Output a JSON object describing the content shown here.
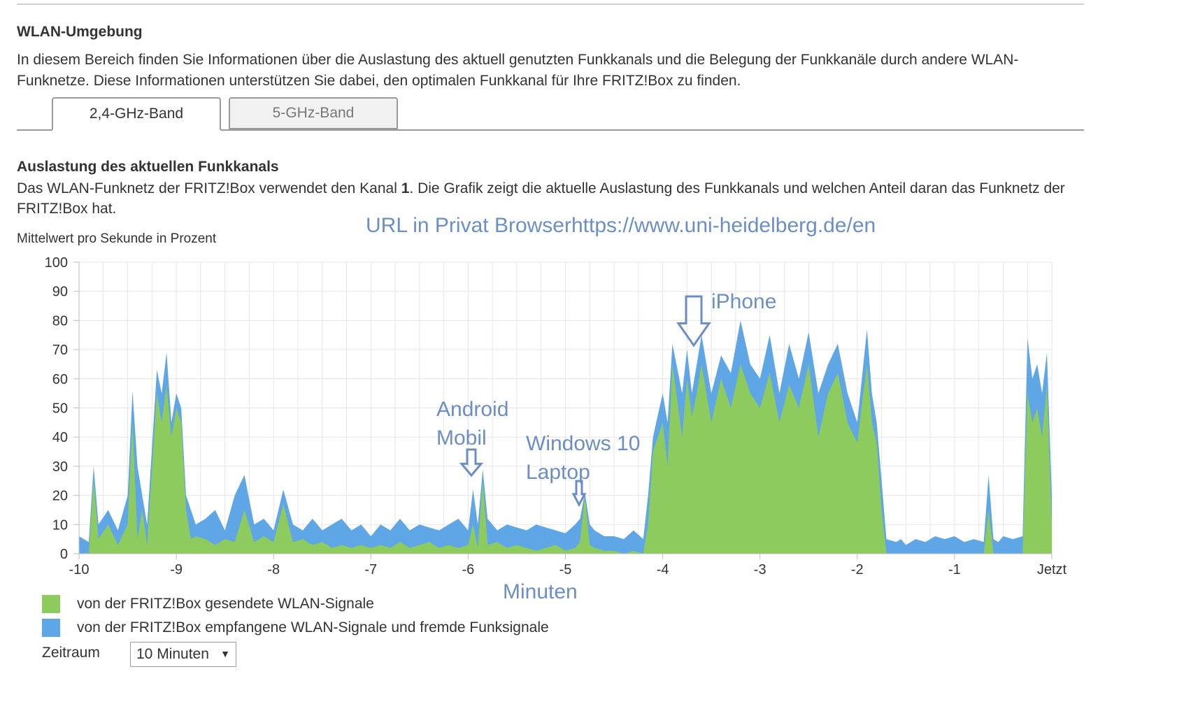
{
  "page": {
    "section_title": "WLAN-Umgebung",
    "intro": "In diesem Bereich finden Sie Informationen über die Auslastung des aktuell genutzten Funkkanals und die Belegung der Funkkanäle durch andere WLAN-Funknetze. Diese Informationen unterstützen Sie dabei, den optimalen Funkkanal für Ihre FRITZ!Box zu finden.",
    "tabs": [
      {
        "label": "2,4-GHz-Band",
        "active": true
      },
      {
        "label": "5-GHz-Band",
        "active": false
      }
    ],
    "subsection_title": "Auslastung des aktuellen Funkkanals",
    "desc_prefix": "Das WLAN-Funknetz der FRITZ!Box verwendet den Kanal ",
    "channel": "1",
    "desc_suffix": ". Die Grafik zeigt die aktuelle Auslastung des Funkkanals und welchen Anteil daran das Funknetz der FRITZ!Box hat.",
    "chart_ylabel": "Mittelwert pro Sekunde in Prozent",
    "legend": [
      {
        "label": "von der FRITZ!Box gesendete WLAN-Signale",
        "color": "#8ecb5f"
      },
      {
        "label": "von der FRITZ!Box empfangene WLAN-Signale und fremde Funksignale",
        "color": "#5ea6e6"
      }
    ],
    "zeitraum_label": "Zeitraum",
    "zeitraum_value": "10 Minuten",
    "annotations": {
      "url_note": "URL in Privat Browserhttps://www.uni-heidelberg.de/en",
      "android": [
        "Android",
        "Mobil"
      ],
      "windows": [
        "Windows 10",
        "Laptop"
      ],
      "iphone": "iPhone",
      "xaxis_note": "Minuten",
      "color": "#6b8fc4"
    }
  },
  "chart_data": {
    "type": "area",
    "ylabel": "Mittelwert pro Sekunde in Prozent",
    "ylim": [
      0,
      100
    ],
    "yticks": [
      0,
      10,
      20,
      30,
      40,
      50,
      60,
      70,
      80,
      90,
      100
    ],
    "xlim": [
      -10,
      0
    ],
    "xticks": [
      {
        "value": -10,
        "label": "-10"
      },
      {
        "value": -9,
        "label": "-9"
      },
      {
        "value": -8,
        "label": "-8"
      },
      {
        "value": -7,
        "label": "-7"
      },
      {
        "value": -6,
        "label": "-6"
      },
      {
        "value": -5,
        "label": "-5"
      },
      {
        "value": -4,
        "label": "-4"
      },
      {
        "value": -3,
        "label": "-3"
      },
      {
        "value": -2,
        "label": "-2"
      },
      {
        "value": -1,
        "label": "-1"
      },
      {
        "value": 0,
        "label": "Jetzt"
      }
    ],
    "grid": true,
    "x": [
      -10,
      -9.9,
      -9.85,
      -9.8,
      -9.7,
      -9.6,
      -9.5,
      -9.45,
      -9.4,
      -9.35,
      -9.3,
      -9.2,
      -9.15,
      -9.1,
      -9.05,
      -9.0,
      -8.95,
      -8.9,
      -8.85,
      -8.8,
      -8.7,
      -8.6,
      -8.5,
      -8.4,
      -8.3,
      -8.2,
      -8.1,
      -8.0,
      -7.9,
      -7.8,
      -7.7,
      -7.6,
      -7.5,
      -7.4,
      -7.3,
      -7.2,
      -7.1,
      -7.0,
      -6.9,
      -6.8,
      -6.7,
      -6.6,
      -6.5,
      -6.4,
      -6.3,
      -6.2,
      -6.1,
      -6.0,
      -5.95,
      -5.9,
      -5.85,
      -5.8,
      -5.7,
      -5.6,
      -5.5,
      -5.4,
      -5.3,
      -5.2,
      -5.1,
      -5.0,
      -4.9,
      -4.85,
      -4.8,
      -4.75,
      -4.7,
      -4.6,
      -4.5,
      -4.4,
      -4.3,
      -4.2,
      -4.15,
      -4.1,
      -4.0,
      -3.95,
      -3.9,
      -3.8,
      -3.75,
      -3.7,
      -3.65,
      -3.6,
      -3.5,
      -3.4,
      -3.3,
      -3.2,
      -3.1,
      -3.0,
      -2.9,
      -2.8,
      -2.7,
      -2.6,
      -2.5,
      -2.4,
      -2.3,
      -2.2,
      -2.1,
      -2.0,
      -1.9,
      -1.85,
      -1.8,
      -1.75,
      -1.7,
      -1.6,
      -1.55,
      -1.5,
      -1.4,
      -1.3,
      -1.2,
      -1.1,
      -1.0,
      -0.9,
      -0.8,
      -0.7,
      -0.65,
      -0.6,
      -0.55,
      -0.5,
      -0.4,
      -0.3,
      -0.25,
      -0.2,
      -0.15,
      -0.1,
      -0.05,
      0
    ],
    "series": [
      {
        "name": "von der FRITZ!Box gesendete WLAN-Signale",
        "color": "#8ecb5f",
        "values": [
          0,
          0,
          25,
          5,
          10,
          3,
          10,
          45,
          5,
          15,
          3,
          55,
          45,
          58,
          40,
          50,
          45,
          15,
          5,
          6,
          5,
          3,
          5,
          4,
          15,
          4,
          6,
          4,
          17,
          4,
          5,
          3,
          4,
          2,
          3,
          2,
          3,
          2,
          3,
          2,
          4,
          2,
          3,
          4,
          2,
          3,
          2,
          3,
          10,
          2,
          25,
          3,
          4,
          2,
          3,
          2,
          1,
          2,
          3,
          1,
          2,
          4,
          20,
          3,
          2,
          1,
          1,
          0,
          1,
          0,
          10,
          35,
          45,
          30,
          65,
          40,
          60,
          47,
          55,
          65,
          45,
          60,
          50,
          65,
          55,
          50,
          62,
          45,
          58,
          50,
          65,
          40,
          55,
          62,
          45,
          38,
          65,
          45,
          38,
          15,
          0,
          0,
          0,
          0,
          0,
          0,
          0,
          0,
          0,
          0,
          0,
          0,
          15,
          0,
          0,
          0,
          0,
          0,
          55,
          45,
          50,
          40,
          58,
          10
        ]
      },
      {
        "name": "von der FRITZ!Box empfangene WLAN-Signale und fremde Funksignale",
        "color": "#5ea6e6",
        "values": [
          6,
          4,
          30,
          10,
          15,
          8,
          20,
          56,
          30,
          20,
          10,
          63,
          55,
          69,
          45,
          55,
          50,
          20,
          15,
          10,
          12,
          15,
          8,
          20,
          27,
          10,
          12,
          8,
          22,
          10,
          8,
          12,
          8,
          10,
          12,
          8,
          10,
          6,
          10,
          8,
          12,
          8,
          10,
          9,
          8,
          10,
          12,
          8,
          22,
          10,
          29,
          12,
          8,
          10,
          9,
          8,
          10,
          9,
          8,
          7,
          10,
          12,
          21,
          10,
          8,
          6,
          6,
          5,
          8,
          5,
          20,
          40,
          55,
          45,
          72,
          55,
          70,
          55,
          65,
          75,
          55,
          68,
          62,
          80,
          65,
          60,
          75,
          55,
          72,
          60,
          76,
          55,
          65,
          72,
          55,
          45,
          77,
          55,
          45,
          25,
          5,
          4,
          5,
          3,
          5,
          4,
          6,
          5,
          6,
          4,
          5,
          4,
          27,
          5,
          4,
          6,
          5,
          6,
          74,
          60,
          65,
          55,
          69,
          20
        ]
      }
    ]
  }
}
